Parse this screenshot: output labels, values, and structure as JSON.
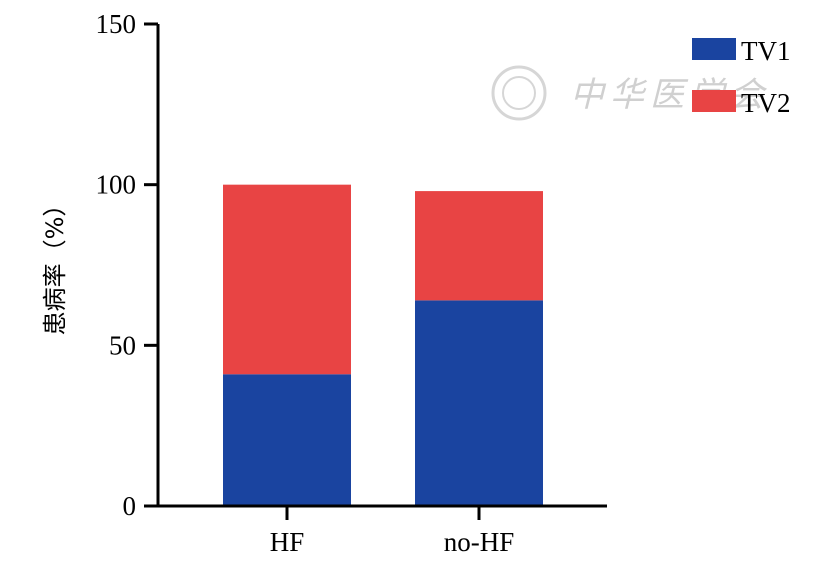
{
  "chart_data": {
    "type": "bar",
    "stacked": true,
    "categories": [
      "HF",
      "no-HF"
    ],
    "series": [
      {
        "name": "TV1",
        "values": [
          41,
          64
        ],
        "color": "#1a44a0"
      },
      {
        "name": "TV2",
        "values": [
          59,
          34
        ],
        "color": "#e84444"
      }
    ],
    "ylabel": "患病率（%）",
    "ylim": [
      0,
      150
    ],
    "yticks": [
      0,
      50,
      100,
      150
    ],
    "legend_position": "top-right",
    "grid": false
  },
  "watermark": {
    "text": "中华医学会"
  }
}
